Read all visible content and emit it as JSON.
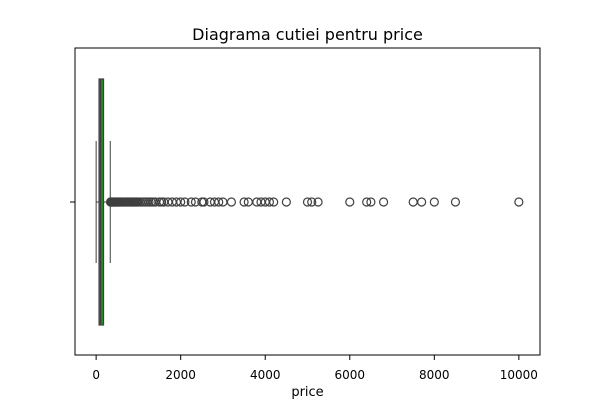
{
  "chart_data": {
    "type": "boxplot",
    "title": "Diagrama cutiei pentru price",
    "xlabel": "price",
    "ylabel": "",
    "xlim": [
      -500,
      10500
    ],
    "xticks": [
      0,
      2000,
      4000,
      6000,
      8000,
      10000
    ],
    "xtick_labels": [
      "0",
      "2000",
      "4000",
      "6000",
      "8000",
      "10000"
    ],
    "grid": false,
    "orientation": "horizontal",
    "series": [
      {
        "name": "",
        "color": "#228B22",
        "whisker_low": 0,
        "q1": 69,
        "median": 105,
        "q3": 175,
        "whisker_high": 334,
        "outliers": [
          340,
          350,
          360,
          375,
          390,
          400,
          415,
          430,
          450,
          465,
          480,
          499,
          520,
          540,
          560,
          580,
          600,
          625,
          650,
          675,
          700,
          725,
          750,
          775,
          800,
          825,
          850,
          875,
          900,
          925,
          950,
          975,
          1000,
          1050,
          1100,
          1150,
          1200,
          1250,
          1300,
          1350,
          1400,
          1500,
          1550,
          1600,
          1700,
          1800,
          1900,
          2000,
          2100,
          2250,
          2350,
          2500,
          2550,
          2700,
          2800,
          2900,
          3000,
          3200,
          3500,
          3600,
          3800,
          3900,
          4000,
          4100,
          4200,
          4500,
          5000,
          5100,
          5250,
          6000,
          6400,
          6500,
          6800,
          7500,
          7700,
          8000,
          8500,
          10000
        ]
      }
    ]
  },
  "colors": {
    "box_fill": "#228B22",
    "box_edge": "#3f3f3f",
    "median_line": "#3f3f3f",
    "outlier_edge": "#3f3f3f",
    "axis": "#000000"
  }
}
